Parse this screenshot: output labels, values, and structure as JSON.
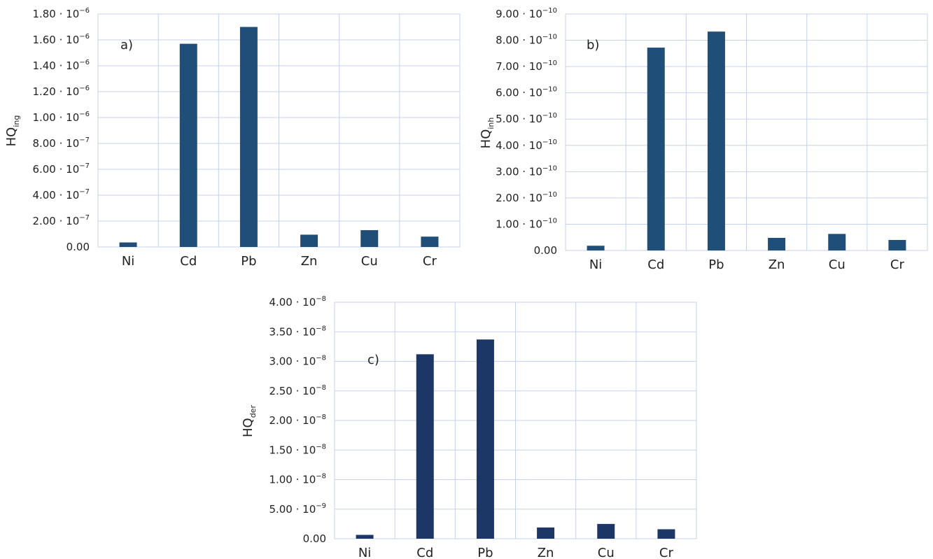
{
  "chart_data": [
    {
      "type": "bar",
      "panel_label": "a)",
      "ylabel_main": "HQ",
      "ylabel_sub": "ing",
      "categories": [
        "Ni",
        "Cd",
        "Pb",
        "Zn",
        "Cu",
        "Cr"
      ],
      "values": [
        3.5e-08,
        1.57e-06,
        1.7e-06,
        9.5e-08,
        1.3e-07,
        8e-08
      ],
      "ylim": [
        0,
        1.8e-06
      ],
      "ticks": [
        {
          "value": 0,
          "mant": "0.00",
          "exp": ""
        },
        {
          "value": 2e-07,
          "mant": "2.00 · 10",
          "exp": "−7"
        },
        {
          "value": 4e-07,
          "mant": "4.00 · 10",
          "exp": "−7"
        },
        {
          "value": 6e-07,
          "mant": "6.00 · 10",
          "exp": "−7"
        },
        {
          "value": 8e-07,
          "mant": "8.00 · 10",
          "exp": "−7"
        },
        {
          "value": 1e-06,
          "mant": "1.00 · 10",
          "exp": "−6"
        },
        {
          "value": 1.2e-06,
          "mant": "1.20 · 10",
          "exp": "−6"
        },
        {
          "value": 1.4e-06,
          "mant": "1.40 · 10",
          "exp": "−6"
        },
        {
          "value": 1.6e-06,
          "mant": "1.60 · 10",
          "exp": "−6"
        },
        {
          "value": 1.8e-06,
          "mant": "1.80 · 10",
          "exp": "−6"
        }
      ],
      "bar_color": "#1f4e79",
      "grid": true
    },
    {
      "type": "bar",
      "panel_label": "b)",
      "ylabel_main": "HQ",
      "ylabel_sub": "inh",
      "categories": [
        "Ni",
        "Cd",
        "Pb",
        "Zn",
        "Cu",
        "Cr"
      ],
      "values": [
        1.8e-11,
        7.72e-10,
        8.33e-10,
        4.8e-11,
        6.3e-11,
        4e-11
      ],
      "ylim": [
        0,
        9e-10
      ],
      "ticks": [
        {
          "value": 0,
          "mant": "0.00",
          "exp": ""
        },
        {
          "value": 1e-10,
          "mant": "1.00 · 10",
          "exp": "−10"
        },
        {
          "value": 2e-10,
          "mant": "2.00 · 10",
          "exp": "−10"
        },
        {
          "value": 3e-10,
          "mant": "3.00 · 10",
          "exp": "−10"
        },
        {
          "value": 4e-10,
          "mant": "4.00 · 10",
          "exp": "−10"
        },
        {
          "value": 5e-10,
          "mant": "5.00 · 10",
          "exp": "−10"
        },
        {
          "value": 6e-10,
          "mant": "6.00 · 10",
          "exp": "−10"
        },
        {
          "value": 7e-10,
          "mant": "7.00 · 10",
          "exp": "−10"
        },
        {
          "value": 8e-10,
          "mant": "8.00 · 10",
          "exp": "−10"
        },
        {
          "value": 9e-10,
          "mant": "9.00 · 10",
          "exp": "−10"
        }
      ],
      "bar_color": "#1f4e79",
      "grid": true
    },
    {
      "type": "bar",
      "panel_label": "c)",
      "ylabel_main": "HQ",
      "ylabel_sub": "der",
      "categories": [
        "Ni",
        "Cd",
        "Pb",
        "Zn",
        "Cu",
        "Cr"
      ],
      "values": [
        6.5e-10,
        3.12e-08,
        3.37e-08,
        1.9e-09,
        2.5e-09,
        1.6e-09
      ],
      "ylim": [
        0,
        4e-08
      ],
      "ticks": [
        {
          "value": 0,
          "mant": "0.00",
          "exp": ""
        },
        {
          "value": 5e-09,
          "mant": "5.00 · 10",
          "exp": "−9"
        },
        {
          "value": 1e-08,
          "mant": "1.00 · 10",
          "exp": "−8"
        },
        {
          "value": 1.5e-08,
          "mant": "1.50 · 10",
          "exp": "−8"
        },
        {
          "value": 2e-08,
          "mant": "2.00 · 10",
          "exp": "−8"
        },
        {
          "value": 2.5e-08,
          "mant": "2.50 · 10",
          "exp": "−8"
        },
        {
          "value": 3e-08,
          "mant": "3.00 · 10",
          "exp": "−8"
        },
        {
          "value": 3.5e-08,
          "mant": "3.50 · 10",
          "exp": "−8"
        },
        {
          "value": 4e-08,
          "mant": "4.00 · 10",
          "exp": "−8"
        }
      ],
      "bar_color": "#1c3766",
      "grid": true
    }
  ]
}
